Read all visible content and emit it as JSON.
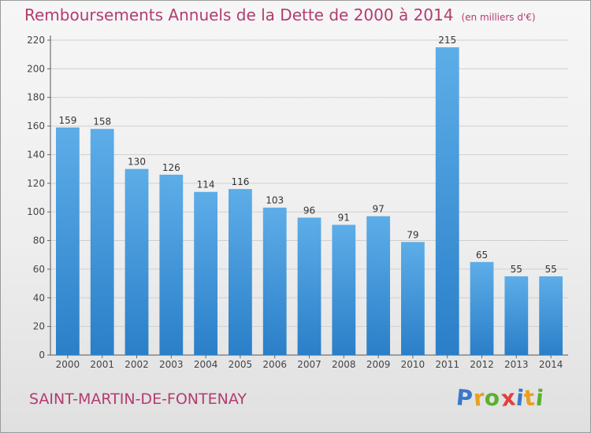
{
  "chart_data": {
    "type": "bar",
    "title": "Remboursements Annuels de la Dette de 2000 à 2014",
    "unit_note": "(en milliers d'€)",
    "categories": [
      "2000",
      "2001",
      "2002",
      "2003",
      "2004",
      "2005",
      "2006",
      "2007",
      "2008",
      "2009",
      "2010",
      "2011",
      "2012",
      "2013",
      "2014"
    ],
    "values": [
      159,
      158,
      130,
      126,
      114,
      116,
      103,
      96,
      91,
      97,
      79,
      215,
      65,
      55,
      55
    ],
    "ylim": [
      0,
      220
    ],
    "yticks": [
      0,
      20,
      40,
      60,
      80,
      100,
      120,
      140,
      160,
      180,
      200,
      220
    ],
    "grid": true,
    "xlabel": "",
    "ylabel": "",
    "bar_color_top": "#5dade8",
    "bar_color_bottom": "#2a7fc8"
  },
  "footer": {
    "commune": "SAINT-MARTIN-DE-FONTENAY"
  },
  "logo": {
    "letters": [
      "P",
      "r",
      "o",
      "x",
      "i",
      "t",
      "i"
    ],
    "colors": [
      "#3a78c8",
      "#e8a020",
      "#5ab030",
      "#e04040",
      "#3a78c8",
      "#e8a020",
      "#5ab030"
    ]
  },
  "colors": {
    "title": "#b33c70",
    "grid": "#cfcfcf"
  }
}
